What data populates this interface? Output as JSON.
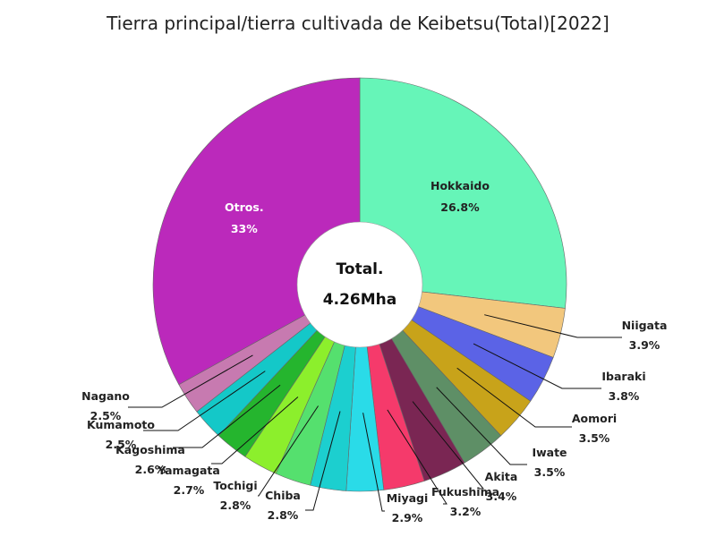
{
  "chart_data": {
    "type": "pie",
    "title": "Tierra principal/tierra cultivada de Keibetsu(Total)[2022]",
    "center_label": "Total.",
    "center_value": "4.26Mha",
    "slices": [
      {
        "name": "Hokkaido",
        "value": 26.8,
        "label": "26.8%",
        "color": "#66f5b8"
      },
      {
        "name": "Niigata",
        "value": 3.9,
        "label": "3.9%",
        "color": "#f2c77d"
      },
      {
        "name": "Ibaraki",
        "value": 3.8,
        "label": "3.8%",
        "color": "#5b63e6"
      },
      {
        "name": "Aomori",
        "value": 3.5,
        "label": "3.5%",
        "color": "#c8a31a"
      },
      {
        "name": "Iwate",
        "value": 3.5,
        "label": "3.5%",
        "color": "#5e8f66"
      },
      {
        "name": "Akita",
        "value": 3.4,
        "label": "3.4%",
        "color": "#7a2653"
      },
      {
        "name": "Fukushima",
        "value": 3.2,
        "label": "3.2%",
        "color": "#f53a6b"
      },
      {
        "name": "Miyagi",
        "value": 2.9,
        "label": "2.9%",
        "color": "#2adbe8"
      },
      {
        "name": "Chiba",
        "value": 2.8,
        "label": "2.8%",
        "color": "#1ccfcf"
      },
      {
        "name": "Tochigi",
        "value": 2.8,
        "label": "2.8%",
        "color": "#55e06e"
      },
      {
        "name": "Yamagata",
        "value": 2.7,
        "label": "2.7%",
        "color": "#8cef2c"
      },
      {
        "name": "Kagoshima",
        "value": 2.6,
        "label": "2.6%",
        "color": "#25b52e"
      },
      {
        "name": "Kumamoto",
        "value": 2.5,
        "label": "2.5%",
        "color": "#14c8c8"
      },
      {
        "name": "Nagano",
        "value": 2.5,
        "label": "2.5%",
        "color": "#c77ab0"
      },
      {
        "name": "Otros.",
        "value": 33,
        "label": "33%",
        "color": "#bb29bb"
      }
    ]
  }
}
